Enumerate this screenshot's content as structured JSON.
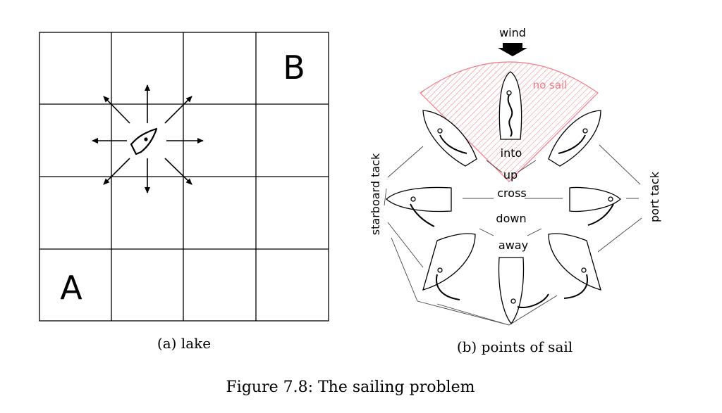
{
  "lake": {
    "label_a": "A",
    "label_b": "B",
    "caption": "(a) lake"
  },
  "sail": {
    "wind_label": "wind",
    "no_sail_label": "no sail",
    "into": "into",
    "up": "up",
    "cross": "cross",
    "down": "down",
    "away": "away",
    "starboard_label": "starboard tack",
    "port_label": "port tack",
    "caption": "(b) points of sail",
    "no_sail_color": "#f07a86"
  },
  "figure": {
    "caption": "Figure 7.8: The sailing problem"
  }
}
